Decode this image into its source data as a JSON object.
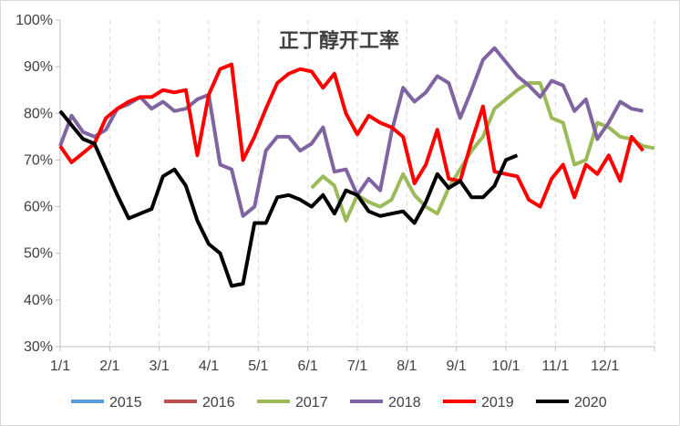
{
  "chart_data": {
    "type": "line",
    "title": "正丁醇开工率",
    "xlabel": "",
    "ylabel": "",
    "x_ticks": [
      "1/1",
      "2/1",
      "3/1",
      "4/1",
      "5/1",
      "6/1",
      "7/1",
      "8/1",
      "9/1",
      "10/1",
      "11/1",
      "12/1"
    ],
    "y_ticks": [
      "30%",
      "40%",
      "50%",
      "60%",
      "70%",
      "80%",
      "90%",
      "100%"
    ],
    "ylim": [
      30,
      100
    ],
    "xlim": [
      0,
      52
    ],
    "x_unit": "week",
    "grid": "vertical dashed",
    "legend_position": "bottom",
    "series": [
      {
        "name": "2015",
        "color": "#5b9bd5",
        "points": []
      },
      {
        "name": "2016",
        "color": "#c0504d",
        "points": []
      },
      {
        "name": "2017",
        "color": "#9bbb59",
        "points": [
          [
            22,
            64
          ],
          [
            23,
            66.5
          ],
          [
            24,
            64.5
          ],
          [
            25,
            57
          ],
          [
            26,
            62.5
          ],
          [
            27,
            61
          ],
          [
            28,
            60
          ],
          [
            29,
            61.5
          ],
          [
            30,
            67
          ],
          [
            31,
            62.5
          ],
          [
            32,
            60
          ],
          [
            33,
            58.5
          ],
          [
            34,
            64
          ],
          [
            35,
            68
          ],
          [
            36,
            72
          ],
          [
            37,
            75
          ],
          [
            38,
            81
          ],
          [
            39,
            83
          ],
          [
            40,
            85
          ],
          [
            41,
            86.5
          ],
          [
            42,
            86.5
          ],
          [
            43,
            79
          ],
          [
            44,
            78
          ],
          [
            45,
            69
          ],
          [
            46,
            70
          ],
          [
            47,
            78
          ],
          [
            48,
            77
          ],
          [
            49,
            75
          ],
          [
            50,
            74.5
          ],
          [
            51,
            73
          ],
          [
            52,
            72.5
          ]
        ]
      },
      {
        "name": "2018",
        "color": "#8064a2",
        "points": [
          [
            0,
            73
          ],
          [
            1,
            79.5
          ],
          [
            2,
            76
          ],
          [
            3,
            75
          ],
          [
            4,
            76.5
          ],
          [
            5,
            81
          ],
          [
            6,
            82
          ],
          [
            7,
            83.5
          ],
          [
            8,
            81
          ],
          [
            9,
            82.5
          ],
          [
            10,
            80.5
          ],
          [
            11,
            81
          ],
          [
            12,
            83
          ],
          [
            13,
            84
          ],
          [
            14,
            69
          ],
          [
            15,
            68
          ],
          [
            16,
            58
          ],
          [
            17,
            60
          ],
          [
            18,
            72
          ],
          [
            19,
            75
          ],
          [
            20,
            75
          ],
          [
            21,
            72
          ],
          [
            22,
            73.5
          ],
          [
            23,
            77
          ],
          [
            24,
            67.5
          ],
          [
            25,
            68
          ],
          [
            26,
            62.5
          ],
          [
            27,
            66
          ],
          [
            28,
            63.5
          ],
          [
            29,
            76
          ],
          [
            30,
            85.5
          ],
          [
            31,
            82.5
          ],
          [
            32,
            84.5
          ],
          [
            33,
            88
          ],
          [
            34,
            86.5
          ],
          [
            35,
            79
          ],
          [
            36,
            85
          ],
          [
            37,
            91.5
          ],
          [
            38,
            94
          ],
          [
            39,
            91
          ],
          [
            40,
            88
          ],
          [
            41,
            86
          ],
          [
            42,
            83.5
          ],
          [
            43,
            87
          ],
          [
            44,
            86
          ],
          [
            45,
            80.5
          ],
          [
            46,
            83
          ],
          [
            47,
            74.5
          ],
          [
            48,
            78
          ],
          [
            49,
            82.5
          ],
          [
            50,
            81
          ],
          [
            51,
            80.5
          ]
        ]
      },
      {
        "name": "2019",
        "color": "#ff0000",
        "points": [
          [
            0,
            73
          ],
          [
            1,
            69.5
          ],
          [
            2,
            71.5
          ],
          [
            3,
            73.5
          ],
          [
            4,
            79
          ],
          [
            5,
            81
          ],
          [
            6,
            82.5
          ],
          [
            7,
            83.5
          ],
          [
            8,
            83.5
          ],
          [
            9,
            85
          ],
          [
            10,
            84.5
          ],
          [
            11,
            85
          ],
          [
            12,
            71
          ],
          [
            13,
            84
          ],
          [
            14,
            89.5
          ],
          [
            15,
            90.5
          ],
          [
            16,
            70
          ],
          [
            17,
            75
          ],
          [
            18,
            81
          ],
          [
            19,
            86.5
          ],
          [
            20,
            88.5
          ],
          [
            21,
            89.5
          ],
          [
            22,
            89
          ],
          [
            23,
            85.5
          ],
          [
            24,
            88.5
          ],
          [
            25,
            80
          ],
          [
            26,
            75.5
          ],
          [
            27,
            79.5
          ],
          [
            28,
            78
          ],
          [
            29,
            77
          ],
          [
            30,
            75
          ],
          [
            31,
            65
          ],
          [
            32,
            69
          ],
          [
            33,
            76.5
          ],
          [
            34,
            66
          ],
          [
            35,
            65.5
          ],
          [
            36,
            74
          ],
          [
            37,
            81.5
          ],
          [
            38,
            67.5
          ],
          [
            39,
            67
          ],
          [
            40,
            66.5
          ],
          [
            41,
            61.5
          ],
          [
            42,
            60
          ],
          [
            43,
            66
          ],
          [
            44,
            69
          ],
          [
            45,
            62
          ],
          [
            46,
            69
          ],
          [
            47,
            67
          ],
          [
            48,
            71
          ],
          [
            49,
            65.5
          ],
          [
            50,
            75
          ],
          [
            51,
            72
          ]
        ]
      },
      {
        "name": "2020",
        "color": "#000000",
        "points": [
          [
            0,
            80.5
          ],
          [
            1,
            77.5
          ],
          [
            2,
            74.5
          ],
          [
            3,
            73.5
          ],
          [
            4,
            68
          ],
          [
            5,
            62.5
          ],
          [
            6,
            57.5
          ],
          [
            7,
            58.5
          ],
          [
            8,
            59.5
          ],
          [
            9,
            66.5
          ],
          [
            10,
            68
          ],
          [
            11,
            64.5
          ],
          [
            12,
            57
          ],
          [
            13,
            52
          ],
          [
            14,
            50
          ],
          [
            15,
            43
          ],
          [
            16,
            43.5
          ],
          [
            17,
            56.5
          ],
          [
            18,
            56.5
          ],
          [
            19,
            62
          ],
          [
            20,
            62.5
          ],
          [
            21,
            61.5
          ],
          [
            22,
            60
          ],
          [
            23,
            62.5
          ],
          [
            24,
            58.5
          ],
          [
            25,
            63.5
          ],
          [
            26,
            62.5
          ],
          [
            27,
            59
          ],
          [
            28,
            58
          ],
          [
            29,
            58.5
          ],
          [
            30,
            59
          ],
          [
            31,
            56.5
          ],
          [
            32,
            61
          ],
          [
            33,
            67
          ],
          [
            34,
            64
          ],
          [
            35,
            65.5
          ],
          [
            36,
            62
          ],
          [
            37,
            62
          ],
          [
            38,
            64.5
          ],
          [
            39,
            70
          ],
          [
            40,
            71
          ]
        ]
      }
    ]
  }
}
